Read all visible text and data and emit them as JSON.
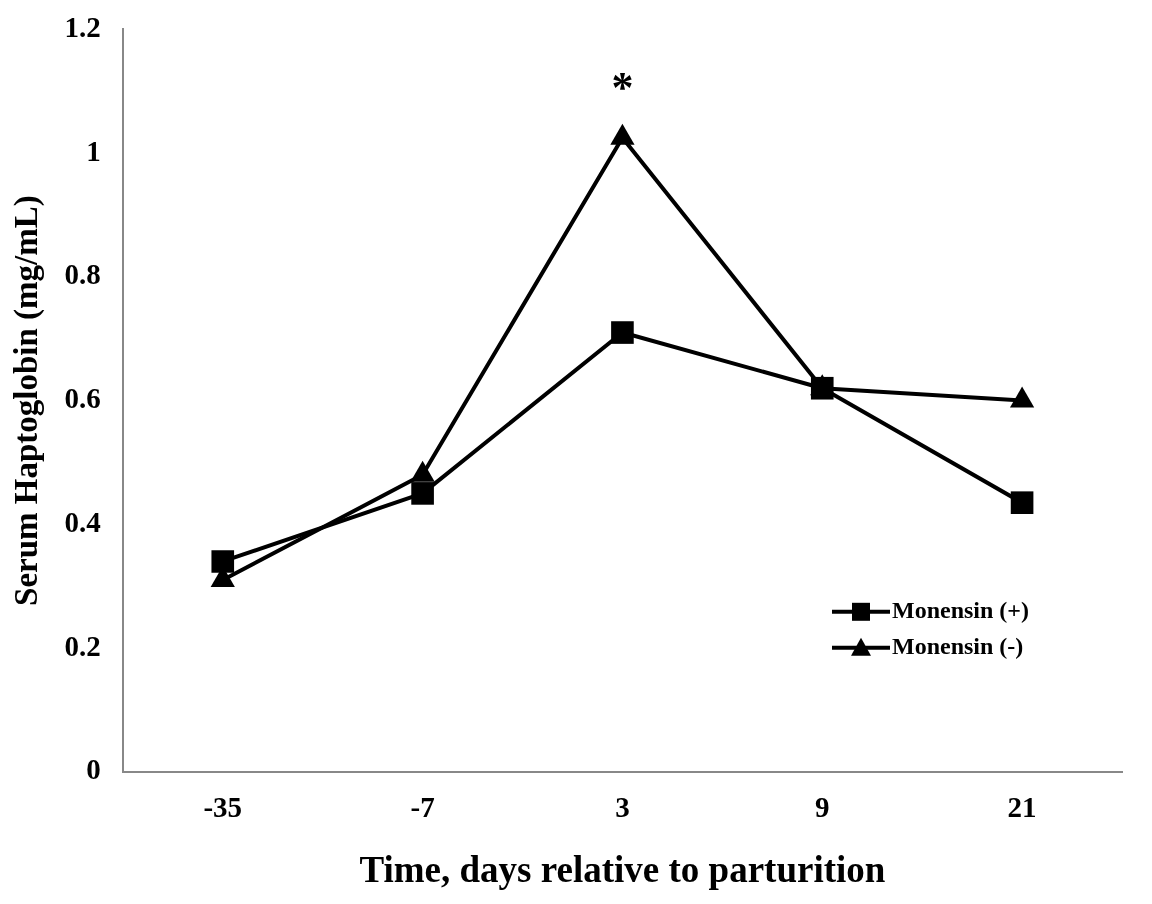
{
  "chart_data": {
    "type": "line",
    "xlabel": "Time, days relative to parturition",
    "ylabel": "Serum Haptoglobin (mg/mL)",
    "categories": [
      "-35",
      "-7",
      "3",
      "9",
      "21"
    ],
    "series": [
      {
        "name": "Monensin (+)",
        "color": "#000000",
        "marker": "square",
        "values": [
          0.34,
          0.45,
          0.71,
          0.62,
          0.435
        ]
      },
      {
        "name": "Monensin (-)",
        "color": "#000000",
        "marker": "triangle",
        "values": [
          0.31,
          0.48,
          1.025,
          0.62,
          0.6
        ]
      }
    ],
    "ylim": [
      0,
      1.2
    ],
    "yticks": [
      0,
      0.2,
      0.4,
      0.6,
      0.8,
      1,
      1.2
    ],
    "grid": false,
    "legend": "bottom right",
    "line_style": "solid",
    "annotations": [
      "*"
    ]
  }
}
